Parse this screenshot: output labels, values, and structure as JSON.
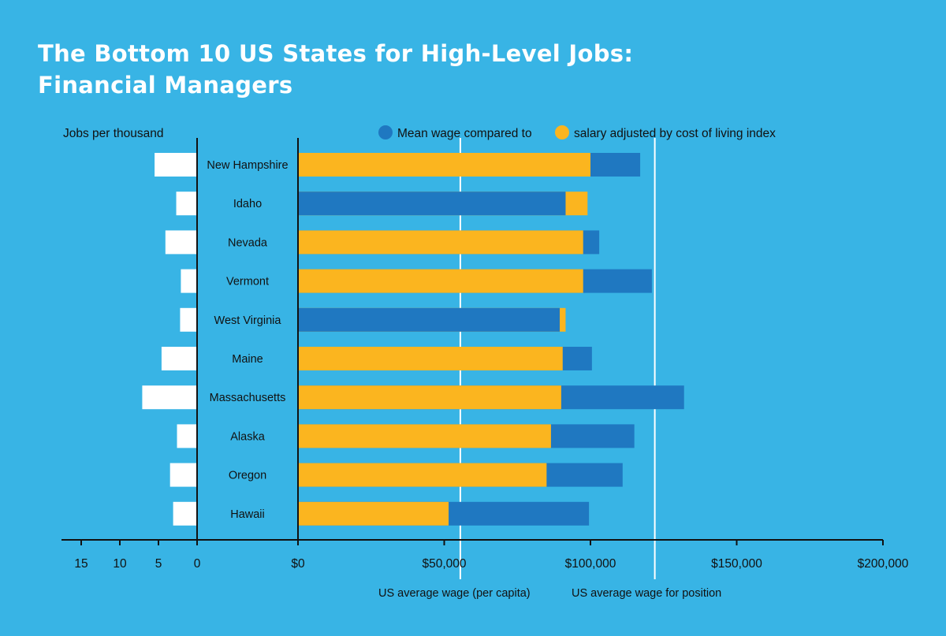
{
  "title_line1": "The Bottom 10 US States for High-Level Jobs:",
  "title_line2": "Financial Managers",
  "chart_data": {
    "type": "bar",
    "left_axis_label": "Jobs per thousand",
    "legend": {
      "mean_wage": "Mean wage compared to",
      "adjusted_salary": "salary adjusted by cost of living index"
    },
    "colors": {
      "background": "#38b4e5",
      "mean_wage": "#1f78c1",
      "adjusted_salary": "#fbb51f",
      "jobs": "#ffffff"
    },
    "categories": [
      "New Hampshire",
      "Idaho",
      "Nevada",
      "Vermont",
      "West Virginia",
      "Maine",
      "Massachusetts",
      "Alaska",
      "Oregon",
      "Hawaii"
    ],
    "jobs_per_thousand": [
      5.5,
      2.7,
      4.1,
      2.1,
      2.2,
      4.6,
      7.1,
      2.6,
      3.5,
      3.1
    ],
    "series": [
      {
        "name": "Mean wage compared to",
        "values": [
          117000,
          91500,
          103000,
          121000,
          89500,
          100500,
          132000,
          115000,
          111000,
          99500
        ]
      },
      {
        "name": "salary adjusted by cost of living index",
        "values": [
          100000,
          99000,
          97500,
          97500,
          91500,
          90500,
          90000,
          86500,
          85000,
          51500
        ]
      }
    ],
    "reference_lines": [
      {
        "label": "US average wage (per capita)",
        "value": 55500
      },
      {
        "label": "US average wage for position",
        "value": 122000
      }
    ],
    "wage_axis": {
      "ticks": [
        "$0",
        "$50,000",
        "$100,000",
        "$150,000",
        "$200,000"
      ],
      "tick_values": [
        0,
        50000,
        100000,
        150000,
        200000
      ],
      "range": [
        0,
        200000
      ]
    },
    "jobs_axis": {
      "ticks": [
        "15",
        "10",
        "5",
        "0"
      ],
      "tick_values": [
        15,
        10,
        5,
        0
      ],
      "range": [
        0,
        17
      ]
    }
  }
}
